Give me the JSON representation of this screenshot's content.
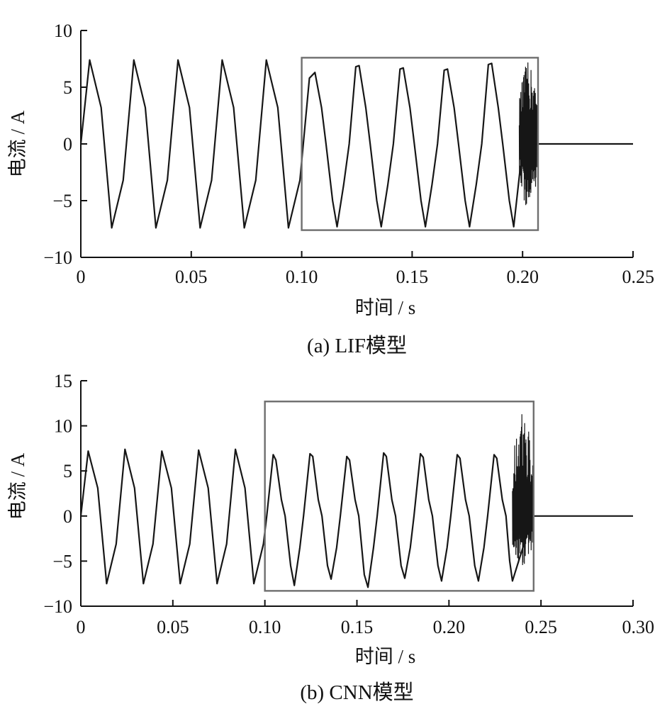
{
  "chart_data": [
    {
      "type": "line",
      "caption": "(a)  LIF模型",
      "xlabel": "时间 / s",
      "ylabel": "电流 / A",
      "xlim": [
        0,
        0.25
      ],
      "ylim": [
        -10,
        10
      ],
      "xticks": [
        0,
        0.05,
        0.1,
        0.15,
        0.2,
        0.25
      ],
      "xtick_labels": [
        "0",
        "0.05",
        "0.10",
        "0.15",
        "0.20",
        "0.25"
      ],
      "yticks": [
        -10,
        -5,
        0,
        5,
        10
      ],
      "ytick_labels": [
        "−10",
        "−5",
        "0",
        "5",
        "10"
      ],
      "highlight_box": {
        "x": [
          0.1,
          0.207
        ],
        "y": [
          -7.6,
          7.6
        ]
      },
      "series": [
        {
          "points": [
            [
              0.0,
              0.0
            ],
            [
              0.004,
              7.4
            ],
            [
              0.0092,
              3.2
            ],
            [
              0.014,
              -7.4
            ],
            [
              0.0192,
              -3.2
            ],
            [
              0.024,
              7.4
            ],
            [
              0.0292,
              3.2
            ],
            [
              0.034,
              -7.4
            ],
            [
              0.0392,
              -3.2
            ],
            [
              0.044,
              7.4
            ],
            [
              0.0492,
              3.2
            ],
            [
              0.054,
              -7.4
            ],
            [
              0.0592,
              -3.2
            ],
            [
              0.064,
              7.4
            ],
            [
              0.0692,
              3.2
            ],
            [
              0.074,
              -7.4
            ],
            [
              0.0792,
              -3.2
            ],
            [
              0.084,
              7.4
            ],
            [
              0.0892,
              3.2
            ],
            [
              0.094,
              -7.4
            ],
            [
              0.0992,
              -3.2
            ],
            [
              0.1035,
              5.8
            ],
            [
              0.106,
              6.3
            ],
            [
              0.109,
              3.2
            ],
            [
              0.111,
              0.0
            ],
            [
              0.114,
              -5.0
            ],
            [
              0.116,
              -7.3
            ],
            [
              0.119,
              -3.6
            ],
            [
              0.1215,
              0.0
            ],
            [
              0.1245,
              6.8
            ],
            [
              0.126,
              6.9
            ],
            [
              0.129,
              3.2
            ],
            [
              0.131,
              0.0
            ],
            [
              0.134,
              -5.0
            ],
            [
              0.136,
              -7.3
            ],
            [
              0.139,
              -3.6
            ],
            [
              0.1415,
              0.0
            ],
            [
              0.1445,
              6.6
            ],
            [
              0.146,
              6.7
            ],
            [
              0.149,
              3.2
            ],
            [
              0.151,
              0.0
            ],
            [
              0.154,
              -5.0
            ],
            [
              0.156,
              -7.3
            ],
            [
              0.159,
              -3.6
            ],
            [
              0.1615,
              0.0
            ],
            [
              0.1645,
              6.5
            ],
            [
              0.166,
              6.6
            ],
            [
              0.169,
              3.2
            ],
            [
              0.171,
              0.0
            ],
            [
              0.174,
              -5.0
            ],
            [
              0.176,
              -7.3
            ],
            [
              0.179,
              -3.6
            ],
            [
              0.1815,
              0.0
            ],
            [
              0.1845,
              7.0
            ],
            [
              0.186,
              7.1
            ],
            [
              0.189,
              3.2
            ],
            [
              0.191,
              0.0
            ],
            [
              0.194,
              -5.0
            ],
            [
              0.196,
              -7.3
            ],
            [
              0.199,
              -2.0
            ],
            [
              0.2065,
              0.0
            ],
            [
              0.25,
              0.0
            ]
          ],
          "noise_burst": {
            "x_range": [
              0.1985,
              0.2065
            ],
            "y_range": [
              -5.8,
              7.2
            ]
          }
        }
      ]
    },
    {
      "type": "line",
      "caption": "(b)  CNN模型",
      "xlabel": "时间 / s",
      "ylabel": "电流 / A",
      "xlim": [
        0,
        0.3
      ],
      "ylim": [
        -10,
        15
      ],
      "xticks": [
        0,
        0.05,
        0.1,
        0.15,
        0.2,
        0.25,
        0.3
      ],
      "xtick_labels": [
        "0",
        "0.05",
        "0.10",
        "0.15",
        "0.20",
        "0.25",
        "0.30"
      ],
      "yticks": [
        -10,
        -5,
        0,
        5,
        10,
        15
      ],
      "ytick_labels": [
        "−10",
        "−5",
        "0",
        "5",
        "10",
        "15"
      ],
      "highlight_box": {
        "x": [
          0.1,
          0.246
        ],
        "y": [
          -8.3,
          12.7
        ]
      },
      "series": [
        {
          "points": [
            [
              0.0,
              0.0
            ],
            [
              0.004,
              7.2
            ],
            [
              0.0092,
              3.1
            ],
            [
              0.014,
              -7.5
            ],
            [
              0.0192,
              -3.1
            ],
            [
              0.024,
              7.4
            ],
            [
              0.0292,
              3.1
            ],
            [
              0.034,
              -7.5
            ],
            [
              0.0392,
              -3.1
            ],
            [
              0.044,
              7.2
            ],
            [
              0.0492,
              3.1
            ],
            [
              0.054,
              -7.5
            ],
            [
              0.0592,
              -3.1
            ],
            [
              0.064,
              7.3
            ],
            [
              0.0692,
              3.1
            ],
            [
              0.074,
              -7.5
            ],
            [
              0.0792,
              -3.1
            ],
            [
              0.084,
              7.4
            ],
            [
              0.0892,
              3.1
            ],
            [
              0.094,
              -7.5
            ],
            [
              0.0992,
              -3.1
            ],
            [
              0.101,
              0.0
            ],
            [
              0.1045,
              6.8
            ],
            [
              0.106,
              6.2
            ],
            [
              0.109,
              1.8
            ],
            [
              0.111,
              0.0
            ],
            [
              0.114,
              -5.5
            ],
            [
              0.116,
              -7.7
            ],
            [
              0.119,
              -3.5
            ],
            [
              0.121,
              0.0
            ],
            [
              0.1245,
              6.9
            ],
            [
              0.126,
              6.6
            ],
            [
              0.129,
              1.8
            ],
            [
              0.131,
              0.0
            ],
            [
              0.134,
              -5.5
            ],
            [
              0.136,
              -7.0
            ],
            [
              0.139,
              -3.5
            ],
            [
              0.141,
              0.0
            ],
            [
              0.1445,
              6.6
            ],
            [
              0.146,
              6.2
            ],
            [
              0.149,
              1.8
            ],
            [
              0.151,
              0.0
            ],
            [
              0.154,
              -6.5
            ],
            [
              0.156,
              -7.9
            ],
            [
              0.159,
              -3.5
            ],
            [
              0.161,
              0.0
            ],
            [
              0.1645,
              7.0
            ],
            [
              0.166,
              6.6
            ],
            [
              0.169,
              1.8
            ],
            [
              0.171,
              0.0
            ],
            [
              0.174,
              -5.5
            ],
            [
              0.176,
              -6.9
            ],
            [
              0.179,
              -3.5
            ],
            [
              0.181,
              0.0
            ],
            [
              0.1845,
              6.9
            ],
            [
              0.186,
              6.5
            ],
            [
              0.189,
              1.8
            ],
            [
              0.191,
              0.0
            ],
            [
              0.194,
              -5.5
            ],
            [
              0.196,
              -7.2
            ],
            [
              0.199,
              -3.5
            ],
            [
              0.201,
              0.0
            ],
            [
              0.2045,
              6.8
            ],
            [
              0.206,
              6.4
            ],
            [
              0.209,
              1.8
            ],
            [
              0.211,
              0.0
            ],
            [
              0.214,
              -5.5
            ],
            [
              0.216,
              -7.2
            ],
            [
              0.219,
              -3.5
            ],
            [
              0.221,
              0.0
            ],
            [
              0.2245,
              6.8
            ],
            [
              0.226,
              6.4
            ],
            [
              0.229,
              1.8
            ],
            [
              0.231,
              0.0
            ],
            [
              0.233,
              -5.0
            ],
            [
              0.2345,
              -7.2
            ],
            [
              0.2455,
              0.0
            ],
            [
              0.3,
              0.0
            ]
          ],
          "noise_burst": {
            "x_range": [
              0.2345,
              0.2455
            ],
            "y_range": [
              -5.8,
              12.2
            ]
          }
        }
      ]
    }
  ]
}
